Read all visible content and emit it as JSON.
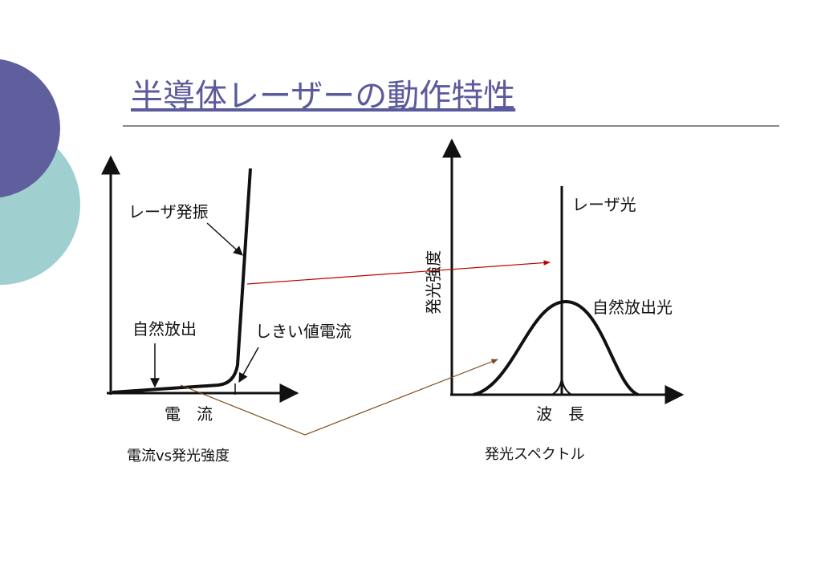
{
  "title": "半導体レーザーの動作特性",
  "diagrams": [
    {
      "caption": "電流vs発光強度",
      "x_label": "電　流",
      "annotations": [
        "レーザ発振",
        "自然放出",
        "しきい値電流"
      ]
    },
    {
      "caption": "発光スペクトル",
      "x_label": "波　長",
      "y_label": "発光強度",
      "annotations": [
        "レーザ光",
        "自然放出光"
      ]
    }
  ]
}
